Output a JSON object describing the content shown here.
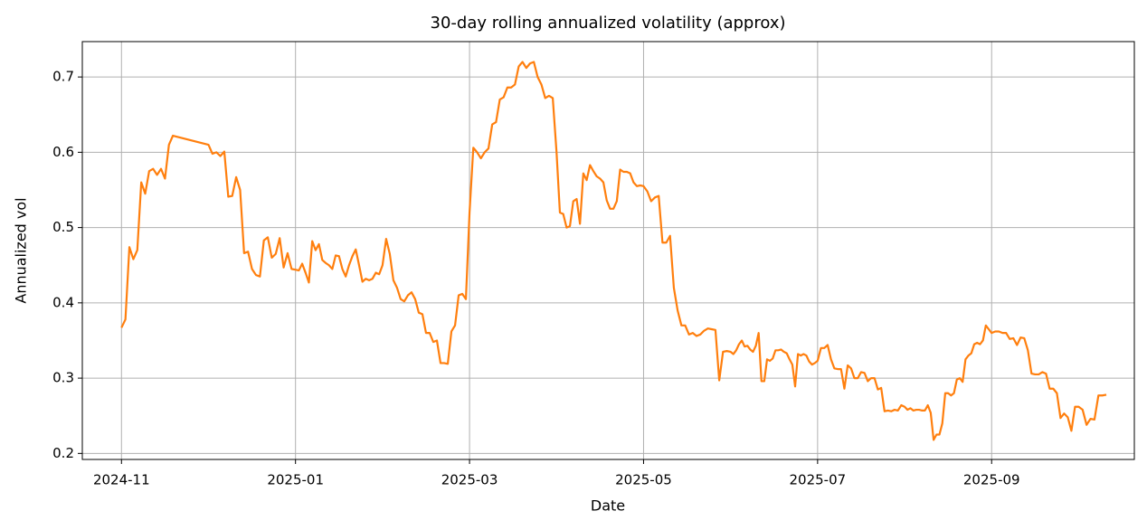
{
  "chart_data": {
    "type": "line",
    "title": "30-day rolling annualized volatility (approx)",
    "x_label": "Date",
    "y_label": "Annualized vol",
    "color": "#ff7f0e",
    "grid": true,
    "ylim": [
      0.192,
      0.747
    ],
    "yticks": [
      0.2,
      0.3,
      0.4,
      0.5,
      0.6,
      0.7
    ],
    "xticks": [
      "2024-11",
      "2025-01",
      "2025-03",
      "2025-05",
      "2025-07",
      "2025-09"
    ],
    "x": [
      "2024-11",
      "2024-11",
      "2024-11",
      "2024-11",
      "2024-11",
      "2024-11",
      "2024-11",
      "2024-11",
      "2024-11",
      "2024-11",
      "2024-11",
      "2024-11",
      "2024-11",
      "2024-11",
      "2024-12",
      "2024-12",
      "2024-12",
      "2024-12",
      "2024-12",
      "2024-12",
      "2024-12",
      "2024-12",
      "2024-12",
      "2024-12",
      "2024-12",
      "2024-12",
      "2024-12",
      "2024-12",
      "2024-12",
      "2024-12",
      "2024-12",
      "2024-12",
      "2024-12",
      "2024-12",
      "2024-12",
      "2024-12",
      "2025-01",
      "2025-01",
      "2025-01",
      "2025-01",
      "2025-01",
      "2025-01",
      "2025-01",
      "2025-01",
      "2025-01",
      "2025-01",
      "2025-01",
      "2025-01",
      "2025-01",
      "2025-01",
      "2025-01",
      "2025-01",
      "2025-01",
      "2025-01",
      "2025-01",
      "2025-01",
      "2025-01",
      "2025-01",
      "2025-01",
      "2025-01",
      "2025-01",
      "2025-01",
      "2025-02",
      "2025-02",
      "2025-02",
      "2025-02",
      "2025-02",
      "2025-02",
      "2025-02",
      "2025-02",
      "2025-02",
      "2025-02",
      "2025-02",
      "2025-02",
      "2025-02",
      "2025-02",
      "2025-02",
      "2025-02",
      "2025-02",
      "2025-02",
      "2025-02",
      "2025-02",
      "2025-02",
      "2025-02",
      "2025-02",
      "2025-02",
      "2025-03",
      "2025-03",
      "2025-03",
      "2025-03",
      "2025-03",
      "2025-03",
      "2025-03",
      "2025-03",
      "2025-03",
      "2025-03",
      "2025-03",
      "2025-03",
      "2025-03",
      "2025-03",
      "2025-03",
      "2025-03",
      "2025-03",
      "2025-03",
      "2025-03",
      "2025-03",
      "2025-03",
      "2025-03",
      "2025-03",
      "2025-04",
      "2025-04",
      "2025-04",
      "2025-04",
      "2025-04",
      "2025-04",
      "2025-04",
      "2025-04",
      "2025-04",
      "2025-04",
      "2025-04",
      "2025-04",
      "2025-04",
      "2025-04",
      "2025-04",
      "2025-04",
      "2025-04",
      "2025-04",
      "2025-04",
      "2025-04",
      "2025-04",
      "2025-04",
      "2025-04",
      "2025-04",
      "2025-04",
      "2025-04",
      "2025-05",
      "2025-05",
      "2025-05",
      "2025-05",
      "2025-05",
      "2025-05",
      "2025-05",
      "2025-05",
      "2025-05",
      "2025-05",
      "2025-05",
      "2025-05",
      "2025-05",
      "2025-05",
      "2025-05",
      "2025-05",
      "2025-05",
      "2025-05",
      "2025-05",
      "2025-05",
      "2025-05",
      "2025-05",
      "2025-05",
      "2025-06",
      "2025-06",
      "2025-06",
      "2025-06",
      "2025-06",
      "2025-06",
      "2025-06",
      "2025-06",
      "2025-06",
      "2025-06",
      "2025-06",
      "2025-06",
      "2025-06",
      "2025-06",
      "2025-06",
      "2025-06",
      "2025-06",
      "2025-06",
      "2025-06",
      "2025-06",
      "2025-06",
      "2025-06",
      "2025-06",
      "2025-06",
      "2025-06",
      "2025-06",
      "2025-06",
      "2025-06",
      "2025-06",
      "2025-06",
      "2025-06",
      "2025-07",
      "2025-07",
      "2025-07",
      "2025-07",
      "2025-07",
      "2025-07",
      "2025-07",
      "2025-07",
      "2025-07",
      "2025-07",
      "2025-07",
      "2025-07",
      "2025-07",
      "2025-07",
      "2025-07",
      "2025-07",
      "2025-07",
      "2025-07",
      "2025-07",
      "2025-07",
      "2025-07",
      "2025-07",
      "2025-07",
      "2025-07",
      "2025-07",
      "2025-07",
      "2025-08",
      "2025-08",
      "2025-08",
      "2025-08",
      "2025-08",
      "2025-08",
      "2025-08",
      "2025-08",
      "2025-08",
      "2025-08",
      "2025-08",
      "2025-08",
      "2025-08",
      "2025-08",
      "2025-08",
      "2025-08",
      "2025-08",
      "2025-08",
      "2025-08",
      "2025-08",
      "2025-08",
      "2025-08",
      "2025-08",
      "2025-08",
      "2025-08",
      "2025-08",
      "2025-08",
      "2025-08",
      "2025-08",
      "2025-08",
      "2025-09",
      "2025-09",
      "2025-09",
      "2025-09",
      "2025-09",
      "2025-09",
      "2025-09",
      "2025-09",
      "2025-09",
      "2025-09",
      "2025-09",
      "2025-09",
      "2025-09",
      "2025-09",
      "2025-09",
      "2025-09",
      "2025-09",
      "2025-09",
      "2025-09",
      "2025-09",
      "2025-09",
      "2025-09",
      "2025-09",
      "2025-09",
      "2025-10",
      "2025-10",
      "2025-10",
      "2025-10",
      "2025-10",
      "2025-10",
      "2025-10",
      "2025-10"
    ],
    "values": [
      0.367,
      0.378,
      0.474,
      0.458,
      0.47,
      0.56,
      0.545,
      0.575,
      0.578,
      0.57,
      0.578,
      0.565,
      0.61,
      0.622,
      0.61,
      0.598,
      0.6,
      0.595,
      0.601,
      0.541,
      0.542,
      0.567,
      0.55,
      0.466,
      0.468,
      0.445,
      0.437,
      0.435,
      0.483,
      0.487,
      0.46,
      0.465,
      0.486,
      0.447,
      0.466,
      0.445,
      0.444,
      0.443,
      0.452,
      0.44,
      0.427,
      0.482,
      0.47,
      0.478,
      0.457,
      0.453,
      0.45,
      0.445,
      0.463,
      0.462,
      0.445,
      0.435,
      0.45,
      0.462,
      0.471,
      0.45,
      0.428,
      0.432,
      0.43,
      0.432,
      0.44,
      0.438,
      0.45,
      0.485,
      0.465,
      0.43,
      0.42,
      0.405,
      0.402,
      0.41,
      0.414,
      0.405,
      0.387,
      0.385,
      0.36,
      0.36,
      0.348,
      0.35,
      0.32,
      0.32,
      0.319,
      0.362,
      0.37,
      0.41,
      0.412,
      0.405,
      0.52,
      0.606,
      0.6,
      0.592,
      0.6,
      0.605,
      0.637,
      0.64,
      0.67,
      0.673,
      0.686,
      0.686,
      0.69,
      0.714,
      0.72,
      0.712,
      0.718,
      0.72,
      0.7,
      0.69,
      0.672,
      0.675,
      0.672,
      0.6,
      0.52,
      0.518,
      0.5,
      0.502,
      0.535,
      0.538,
      0.505,
      0.572,
      0.563,
      0.583,
      0.575,
      0.568,
      0.565,
      0.56,
      0.536,
      0.525,
      0.525,
      0.535,
      0.577,
      0.574,
      0.574,
      0.572,
      0.56,
      0.555,
      0.556,
      0.555,
      0.548,
      0.535,
      0.54,
      0.542,
      0.48,
      0.48,
      0.489,
      0.42,
      0.39,
      0.37,
      0.37,
      0.358,
      0.36,
      0.356,
      0.358,
      0.363,
      0.366,
      0.365,
      0.364,
      0.297,
      0.335,
      0.336,
      0.335,
      0.332,
      0.337,
      0.345,
      0.35,
      0.342,
      0.343,
      0.338,
      0.335,
      0.343,
      0.36,
      0.296,
      0.296,
      0.325,
      0.323,
      0.326,
      0.337,
      0.337,
      0.338,
      0.335,
      0.333,
      0.325,
      0.318,
      0.289,
      0.332,
      0.33,
      0.332,
      0.33,
      0.322,
      0.318,
      0.32,
      0.323,
      0.34,
      0.34,
      0.344,
      0.325,
      0.313,
      0.312,
      0.312,
      0.286,
      0.317,
      0.313,
      0.3,
      0.3,
      0.308,
      0.307,
      0.296,
      0.3,
      0.3,
      0.285,
      0.287,
      0.256,
      0.257,
      0.256,
      0.258,
      0.257,
      0.264,
      0.262,
      0.258,
      0.26,
      0.257,
      0.258,
      0.258,
      0.257,
      0.257,
      0.264,
      0.254,
      0.218,
      0.225,
      0.225,
      0.24,
      0.28,
      0.28,
      0.277,
      0.28,
      0.298,
      0.3,
      0.295,
      0.325,
      0.33,
      0.333,
      0.345,
      0.347,
      0.345,
      0.35,
      0.37,
      0.365,
      0.36,
      0.362,
      0.362,
      0.36,
      0.36,
      0.352,
      0.353,
      0.344,
      0.354,
      0.353,
      0.337,
      0.306,
      0.305,
      0.305,
      0.308,
      0.306,
      0.286,
      0.286,
      0.28,
      0.247,
      0.253,
      0.248,
      0.23,
      0.262,
      0.262,
      0.258,
      0.238,
      0.246,
      0.245,
      0.277,
      0.277,
      0.278
    ]
  }
}
